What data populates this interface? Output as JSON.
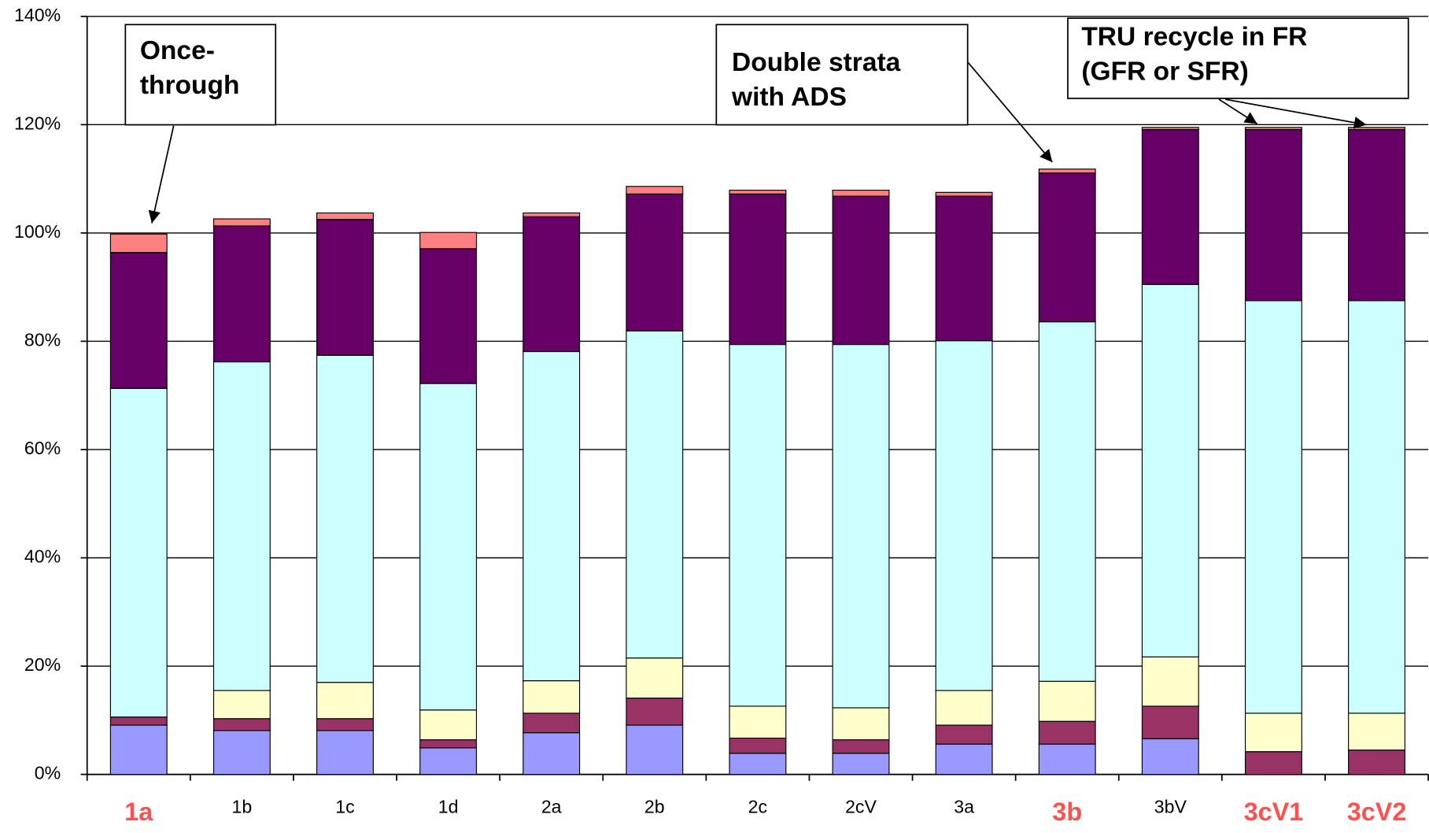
{
  "chart_data": {
    "type": "stacked_bar",
    "categories": [
      "1a",
      "1b",
      "1c",
      "1d",
      "2a",
      "2b",
      "2c",
      "2cV",
      "3a",
      "3b",
      "3bV",
      "3cV1",
      "3cV2"
    ],
    "highlighted_categories": [
      0,
      9,
      11,
      12
    ],
    "highlight_color": "#ff5050",
    "series": [
      {
        "color": "#9999ff",
        "values": [
          9.1,
          8.1,
          8.1,
          4.9,
          7.7,
          9.1,
          3.9,
          3.9,
          5.6,
          5.6,
          6.6,
          0,
          0
        ]
      },
      {
        "color": "#993366",
        "values": [
          1.5,
          2.2,
          2.2,
          1.5,
          3.6,
          5.0,
          2.8,
          2.5,
          3.5,
          4.2,
          6.0,
          4.2,
          4.5
        ]
      },
      {
        "color": "#ffffcc",
        "values": [
          0,
          5.2,
          6.7,
          5.5,
          6.0,
          7.4,
          5.9,
          5.9,
          6.4,
          7.4,
          9.1,
          7.1,
          6.8
        ]
      },
      {
        "color": "#ccffff",
        "values": [
          60.7,
          60.7,
          60.4,
          60.3,
          60.8,
          60.4,
          66.8,
          67.1,
          64.6,
          66.4,
          68.8,
          76.2,
          76.2
        ]
      },
      {
        "color": "#660066",
        "values": [
          25.1,
          25.1,
          25.1,
          24.9,
          24.9,
          25.3,
          27.8,
          27.4,
          26.7,
          27.5,
          28.6,
          31.6,
          31.6
        ]
      },
      {
        "color": "#ff8080",
        "values": [
          3.4,
          1.3,
          1.2,
          3.0,
          0.7,
          1.4,
          0.7,
          1.1,
          0.7,
          0.7,
          0.4,
          0.4,
          0.4
        ]
      }
    ],
    "ylim": [
      0,
      140
    ],
    "yticks": [
      {
        "value": 0,
        "label": "0%"
      },
      {
        "value": 20,
        "label": "20%"
      },
      {
        "value": 40,
        "label": "40%"
      },
      {
        "value": 60,
        "label": "60%"
      },
      {
        "value": 80,
        "label": "80%"
      },
      {
        "value": 100,
        "label": "100%"
      },
      {
        "value": 120,
        "label": "120%"
      },
      {
        "value": 140,
        "label": "140%"
      }
    ],
    "grid": true,
    "annotations": [
      {
        "lines": [
          "Once-",
          "through"
        ]
      },
      {
        "lines": [
          "Double strata",
          "with ADS"
        ]
      },
      {
        "lines": [
          "TRU recycle in FR",
          "(GFR or SFR)"
        ]
      }
    ]
  }
}
